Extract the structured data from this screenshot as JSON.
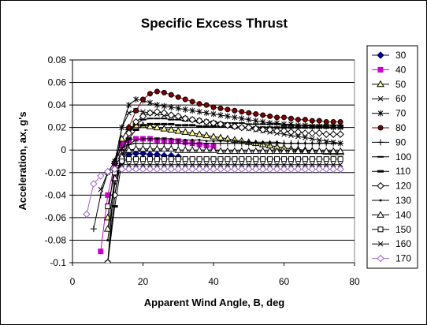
{
  "chart_data": {
    "type": "line",
    "title": "Specific Excess Thrust",
    "xlabel": "Apparent Wind Angle, B, deg",
    "ylabel": "Acceleration, ax, g's",
    "xlim": [
      0,
      80
    ],
    "ylim": [
      -0.1,
      0.08
    ],
    "xticks": [
      0,
      20,
      40,
      60,
      80
    ],
    "yticks": [
      -0.1,
      -0.08,
      -0.06,
      -0.04,
      -0.02,
      0,
      0.02,
      0.04,
      0.06,
      0.08
    ],
    "grid": "horizontal",
    "legend_position": "right",
    "series": [
      {
        "name": "30",
        "color": "#000080",
        "marker": "diamond",
        "x": [
          12,
          14,
          16,
          18,
          20,
          22,
          24,
          26,
          28,
          30
        ],
        "y": [
          -0.012,
          -0.007,
          -0.004,
          -0.003,
          -0.003,
          -0.004,
          -0.004,
          -0.005,
          -0.005,
          -0.006
        ]
      },
      {
        "name": "40",
        "color": "#cc00cc",
        "marker": "square",
        "x": [
          8,
          10,
          12,
          14,
          16,
          18,
          20,
          22,
          24,
          26,
          28,
          30,
          32,
          34,
          36,
          38,
          40
        ],
        "y": [
          -0.09,
          -0.04,
          -0.012,
          0.005,
          0.009,
          0.01,
          0.01,
          0.01,
          0.009,
          0.009,
          0.008,
          0.008,
          0.007,
          0.006,
          0.005,
          0.004,
          0.003
        ]
      },
      {
        "name": "50",
        "color": "#000000",
        "marker": "triangle",
        "x": [
          10,
          12,
          14,
          16,
          18,
          20,
          22,
          24,
          26,
          28,
          30,
          32,
          34,
          36,
          38,
          40,
          42,
          44,
          46,
          48,
          50,
          52,
          54,
          56,
          58,
          60,
          62,
          64,
          66,
          68,
          70,
          72,
          74,
          76
        ],
        "y": [
          -0.06,
          -0.01,
          0.01,
          0.02,
          0.022,
          0.022,
          0.021,
          0.02,
          0.019,
          0.018,
          0.017,
          0.016,
          0.015,
          0.014,
          0.013,
          0.012,
          0.011,
          0.01,
          0.009,
          0.008,
          0.007,
          0.006,
          0.005,
          0.004,
          0.003,
          0.002,
          0.001,
          0.0005,
          0,
          -0.0005,
          -0.001,
          -0.0015,
          -0.002,
          -0.002
        ]
      },
      {
        "name": "60",
        "color": "#000000",
        "marker": "x",
        "x": [
          10,
          12,
          14,
          16,
          18,
          20,
          22,
          24,
          26,
          28,
          30,
          32,
          34,
          36,
          38,
          40,
          42,
          44,
          46,
          48,
          50,
          52,
          54,
          56,
          58,
          60,
          62,
          64,
          66,
          68,
          70,
          72,
          74,
          76
        ],
        "y": [
          -0.1,
          -0.02,
          0.02,
          0.033,
          0.035,
          0.034,
          0.033,
          0.032,
          0.031,
          0.03,
          0.029,
          0.028,
          0.027,
          0.026,
          0.025,
          0.024,
          0.023,
          0.022,
          0.021,
          0.02,
          0.019,
          0.018,
          0.017,
          0.016,
          0.015,
          0.014,
          0.013,
          0.012,
          0.011,
          0.01,
          0.009,
          0.008,
          0.007,
          0.006
        ]
      },
      {
        "name": "70",
        "color": "#000000",
        "marker": "star",
        "x": [
          12,
          14,
          16,
          18,
          20,
          22,
          24,
          26,
          28,
          30,
          32,
          34,
          36,
          38,
          40,
          42,
          44,
          46,
          48,
          50,
          52,
          54,
          56,
          58,
          60,
          62,
          64,
          66,
          68,
          70,
          72,
          74,
          76
        ],
        "y": [
          -0.01,
          0.02,
          0.04,
          0.045,
          0.044,
          0.042,
          0.04,
          0.039,
          0.038,
          0.037,
          0.036,
          0.035,
          0.034,
          0.033,
          0.032,
          0.031,
          0.03,
          0.029,
          0.028,
          0.027,
          0.026,
          0.025,
          0.024,
          0.024,
          0.023,
          0.023,
          0.022,
          0.022,
          0.021,
          0.021,
          0.021,
          0.02,
          0.02
        ]
      },
      {
        "name": "80",
        "color": "#800000",
        "marker": "circle",
        "x": [
          16,
          18,
          20,
          22,
          24,
          26,
          28,
          30,
          32,
          34,
          36,
          38,
          40,
          42,
          44,
          46,
          48,
          50,
          52,
          54,
          56,
          58,
          60,
          62,
          64,
          66,
          68,
          70,
          72,
          74,
          76
        ],
        "y": [
          0.02,
          0.035,
          0.045,
          0.05,
          0.052,
          0.051,
          0.049,
          0.047,
          0.045,
          0.043,
          0.041,
          0.04,
          0.038,
          0.037,
          0.036,
          0.035,
          0.034,
          0.033,
          0.032,
          0.031,
          0.03,
          0.029,
          0.029,
          0.028,
          0.027,
          0.027,
          0.026,
          0.026,
          0.025,
          0.025,
          0.025
        ]
      },
      {
        "name": "90",
        "color": "#000000",
        "marker": "plus",
        "x": [
          6,
          8,
          10,
          12,
          14,
          16,
          18,
          20,
          22,
          24,
          26,
          28,
          30,
          32,
          34,
          36,
          38,
          40,
          42,
          44,
          46,
          48,
          50,
          52,
          54,
          56,
          58,
          60,
          62,
          64,
          66,
          68,
          70,
          72,
          74,
          76
        ],
        "y": [
          -0.07,
          -0.04,
          -0.02,
          -0.01,
          0.002,
          0.005,
          0.006,
          0.006,
          0.006,
          0.006,
          0.006,
          0.006,
          0.006,
          0.006,
          0.006,
          0.006,
          0.006,
          0.006,
          0.006,
          0.006,
          0.006,
          0.006,
          0.006,
          0.006,
          0.006,
          0.006,
          0.006,
          0.006,
          0.006,
          0.006,
          0.006,
          0.006,
          0.006,
          0.006,
          0.006,
          0.006
        ]
      },
      {
        "name": "100",
        "color": "#000000",
        "marker": "hbar",
        "x": [
          10,
          12,
          14,
          16,
          18,
          20,
          22,
          24,
          26,
          28,
          30,
          32,
          34,
          36,
          38,
          40,
          42,
          44,
          46,
          48,
          50,
          52,
          54,
          56,
          58,
          60,
          62,
          64,
          66,
          68,
          70,
          72,
          74,
          76
        ],
        "y": [
          -0.1,
          -0.04,
          0,
          0.015,
          0.023,
          0.027,
          0.028,
          0.028,
          0.028,
          0.027,
          0.027,
          0.026,
          0.026,
          0.025,
          0.025,
          0.025,
          0.024,
          0.024,
          0.024,
          0.024,
          0.023,
          0.023,
          0.023,
          0.023,
          0.023,
          0.022,
          0.022,
          0.022,
          0.022,
          0.022,
          0.022,
          0.022,
          0.022,
          0.022
        ]
      },
      {
        "name": "110",
        "color": "#000000",
        "marker": "hbar-thick",
        "x": [
          10,
          12,
          14,
          16,
          18,
          20,
          22,
          24,
          26,
          28,
          30,
          32,
          34,
          36,
          38,
          40,
          42,
          44,
          46,
          48,
          50,
          52,
          54,
          56,
          58,
          60,
          62,
          64,
          66,
          68,
          70,
          72,
          74,
          76
        ],
        "y": [
          -0.1,
          -0.05,
          -0.01,
          0.01,
          0.018,
          0.022,
          0.023,
          0.023,
          0.023,
          0.023,
          0.022,
          0.022,
          0.022,
          0.021,
          0.021,
          0.021,
          0.021,
          0.021,
          0.02,
          0.02,
          0.02,
          0.02,
          0.02,
          0.02,
          0.02,
          0.02,
          0.02,
          0.02,
          0.02,
          0.02,
          0.02,
          0.02,
          0.02,
          0.02
        ]
      },
      {
        "name": "120",
        "color": "#000000",
        "marker": "diamond-open",
        "x": [
          10,
          12,
          14,
          16,
          18,
          20,
          22,
          24,
          26,
          28,
          30,
          32,
          34,
          36,
          38,
          40,
          42,
          44,
          46,
          48,
          50,
          52,
          54,
          56,
          58,
          60,
          62,
          64,
          66,
          68,
          70,
          72,
          74,
          76
        ],
        "y": [
          -0.1,
          -0.04,
          -0.005,
          0.015,
          0.025,
          0.03,
          0.033,
          0.034,
          0.033,
          0.031,
          0.03,
          0.028,
          0.027,
          0.026,
          0.025,
          0.024,
          0.023,
          0.022,
          0.021,
          0.02,
          0.02,
          0.019,
          0.018,
          0.018,
          0.017,
          0.017,
          0.016,
          0.016,
          0.015,
          0.015,
          0.015,
          0.014,
          0.014,
          0.014
        ]
      },
      {
        "name": "130",
        "color": "#000000",
        "marker": "dot",
        "x": [
          10,
          12,
          14,
          16,
          18,
          20,
          22,
          24,
          26,
          28,
          30,
          32,
          34,
          36,
          38,
          40,
          42,
          44,
          46,
          48,
          50,
          52,
          54,
          56,
          58,
          60,
          62,
          64,
          66,
          68,
          70,
          72,
          74,
          76
        ],
        "y": [
          -0.08,
          -0.03,
          -0.005,
          0.005,
          0.009,
          0.01,
          0.01,
          0.01,
          0.01,
          0.01,
          0.009,
          0.009,
          0.009,
          0.009,
          0.008,
          0.008,
          0.008,
          0.008,
          0.008,
          0.007,
          0.007,
          0.007,
          0.007,
          0.007,
          0.007,
          0.006,
          0.006,
          0.006,
          0.006,
          0.006,
          0.006,
          0.006,
          0.006,
          0.006
        ]
      },
      {
        "name": "140",
        "color": "#000000",
        "marker": "triangle-open",
        "x": [
          10,
          12,
          14,
          16,
          18,
          20,
          22,
          24,
          26,
          28,
          30,
          32,
          34,
          36,
          38,
          40,
          42,
          44,
          46,
          48,
          50,
          52,
          54,
          56,
          58,
          60,
          62,
          64,
          66,
          68,
          70,
          72,
          74,
          76
        ],
        "y": [
          -0.07,
          -0.025,
          -0.006,
          0,
          0.001,
          0.001,
          0.001,
          0.001,
          0.001,
          0.001,
          0,
          0,
          0,
          0,
          0,
          0,
          -0.001,
          -0.001,
          -0.001,
          -0.001,
          -0.001,
          -0.001,
          -0.001,
          -0.001,
          -0.001,
          -0.001,
          -0.001,
          -0.001,
          -0.001,
          -0.001,
          -0.001,
          -0.001,
          -0.001,
          -0.001
        ]
      },
      {
        "name": "150",
        "color": "#000000",
        "marker": "square-open",
        "x": [
          10,
          12,
          14,
          16,
          18,
          20,
          22,
          24,
          26,
          28,
          30,
          32,
          34,
          36,
          38,
          40,
          42,
          44,
          46,
          48,
          50,
          52,
          54,
          56,
          58,
          60,
          62,
          64,
          66,
          68,
          70,
          72,
          74,
          76
        ],
        "y": [
          -0.05,
          -0.02,
          -0.01,
          -0.008,
          -0.008,
          -0.008,
          -0.008,
          -0.008,
          -0.008,
          -0.008,
          -0.008,
          -0.008,
          -0.008,
          -0.008,
          -0.008,
          -0.008,
          -0.008,
          -0.008,
          -0.008,
          -0.008,
          -0.008,
          -0.008,
          -0.008,
          -0.008,
          -0.008,
          -0.008,
          -0.008,
          -0.008,
          -0.008,
          -0.008,
          -0.008,
          -0.008,
          -0.008,
          -0.008
        ]
      },
      {
        "name": "160",
        "color": "#000000",
        "marker": "x",
        "x": [
          8,
          10,
          12,
          14,
          16,
          18,
          20,
          22,
          24,
          26,
          28,
          30,
          32,
          34,
          36,
          38,
          40,
          42,
          44,
          46,
          48,
          50,
          52,
          54,
          56,
          58,
          60,
          62,
          64,
          66,
          68,
          70,
          72,
          74,
          76
        ],
        "y": [
          -0.035,
          -0.02,
          -0.014,
          -0.013,
          -0.013,
          -0.013,
          -0.013,
          -0.013,
          -0.013,
          -0.013,
          -0.013,
          -0.013,
          -0.013,
          -0.013,
          -0.013,
          -0.013,
          -0.013,
          -0.013,
          -0.013,
          -0.013,
          -0.013,
          -0.013,
          -0.013,
          -0.013,
          -0.013,
          -0.013,
          -0.013,
          -0.013,
          -0.013,
          -0.013,
          -0.013,
          -0.013,
          -0.013,
          -0.013,
          -0.013
        ]
      },
      {
        "name": "170",
        "color": "#9966cc",
        "marker": "diamond-open",
        "x": [
          4,
          6,
          8,
          10,
          12,
          14,
          16,
          18,
          20,
          22,
          24,
          26,
          28,
          30,
          32,
          34,
          36,
          38,
          40,
          42,
          44,
          46,
          48,
          50,
          52,
          54,
          56,
          58,
          60,
          62,
          64,
          66,
          68,
          70,
          72,
          74,
          76
        ],
        "y": [
          -0.057,
          -0.03,
          -0.023,
          -0.019,
          -0.017,
          -0.017,
          -0.017,
          -0.017,
          -0.017,
          -0.017,
          -0.017,
          -0.017,
          -0.017,
          -0.017,
          -0.017,
          -0.017,
          -0.017,
          -0.017,
          -0.017,
          -0.017,
          -0.017,
          -0.017,
          -0.017,
          -0.017,
          -0.017,
          -0.017,
          -0.017,
          -0.017,
          -0.017,
          -0.017,
          -0.017,
          -0.017,
          -0.017,
          -0.017,
          -0.017,
          -0.017,
          -0.017
        ]
      }
    ]
  }
}
